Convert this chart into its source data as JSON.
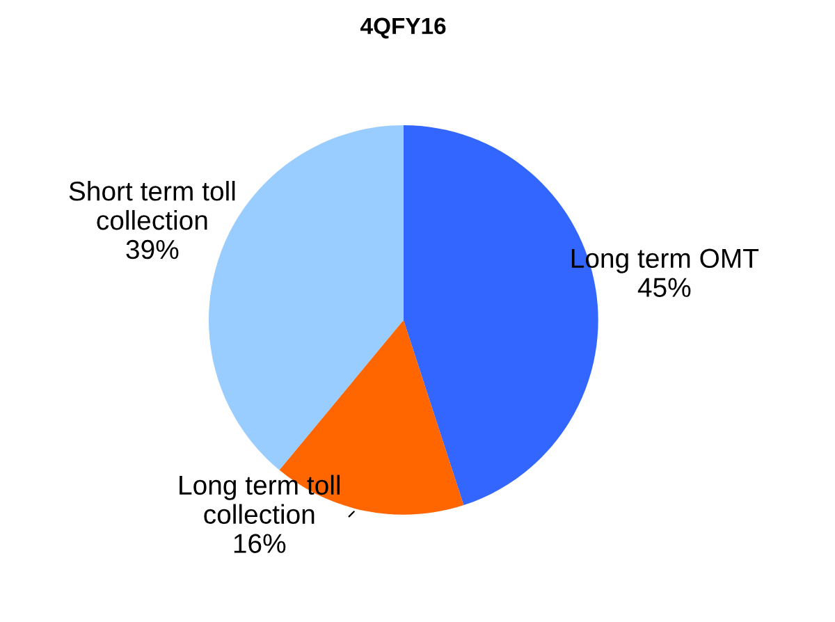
{
  "chart_data": {
    "type": "pie",
    "title": "4QFY16",
    "categories": [
      "Long term OMT",
      "Long term toll collection",
      "Short term toll collection"
    ],
    "values": [
      45,
      16,
      39
    ],
    "colors": [
      "#3366ff",
      "#ff6600",
      "#99ccff"
    ],
    "value_labels": [
      "45%",
      "16%",
      "39%"
    ],
    "legend": false
  }
}
